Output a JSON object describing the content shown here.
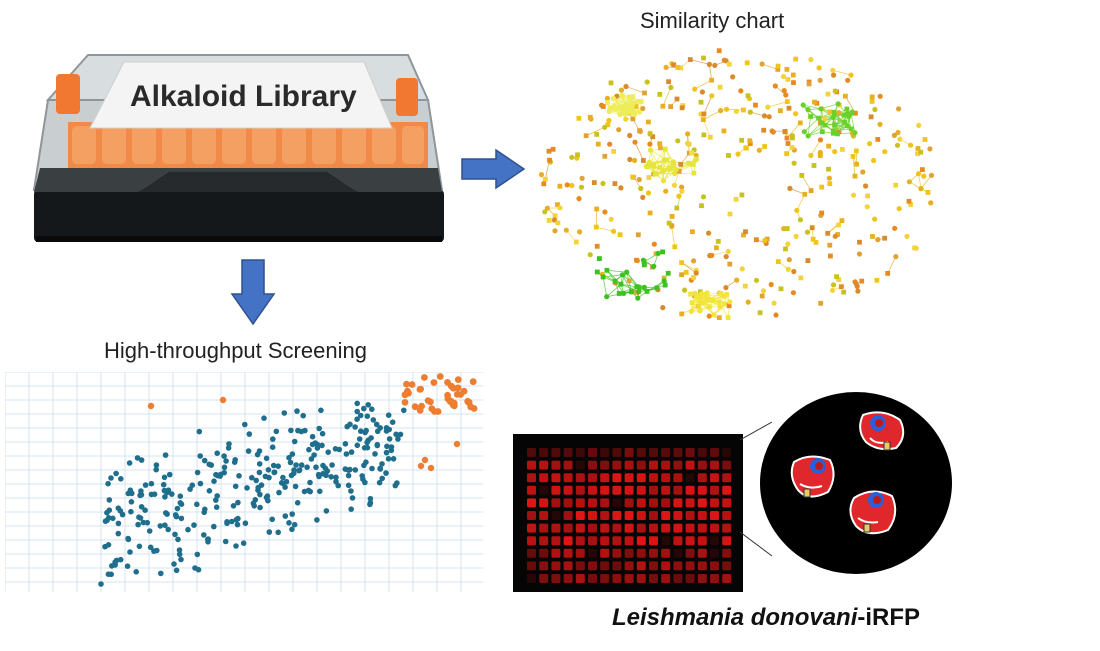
{
  "library": {
    "label": "Alkaloid Library"
  },
  "similarity": {
    "title": "Similarity chart"
  },
  "screening": {
    "title": "High-throughput Screening"
  },
  "parasite": {
    "species": "Leishmania donovani",
    "suffix": "-iRFP"
  },
  "colors": {
    "arrow": "#4472c4",
    "teal_points": "#1f6e8c",
    "orange_points": "#ed7d31",
    "plate_glow": "#e01515",
    "tray_orange": "#f07830"
  }
}
